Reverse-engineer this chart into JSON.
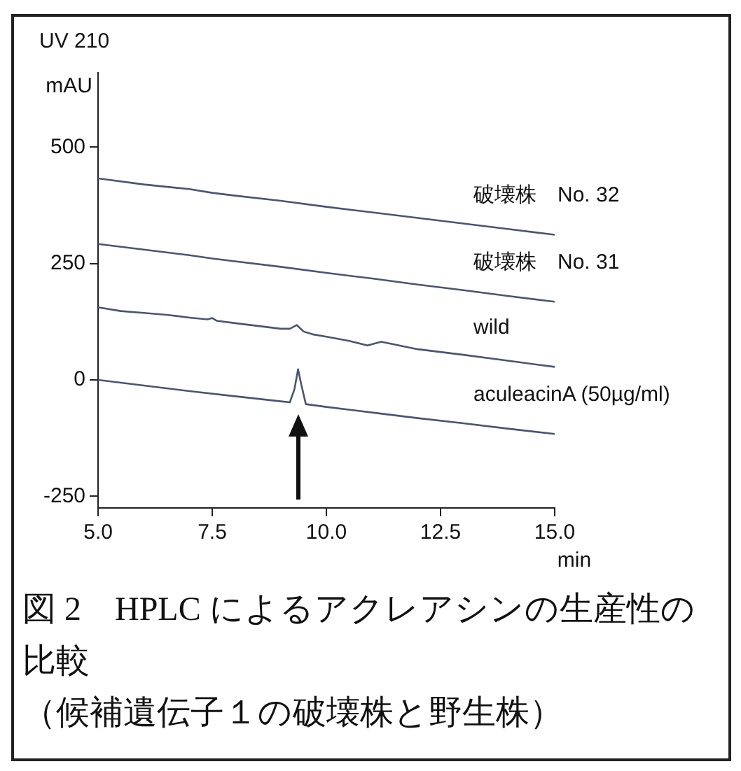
{
  "chart_data": {
    "type": "line",
    "title": "図 2　HPLC によるアクレアシンの生産性の比較",
    "subtitle": "（候補遺伝子１の破壊株と野生株）",
    "ylabel": "mAU",
    "xlabel": "min",
    "annotations": [
      "UV 210"
    ],
    "xlim": [
      5,
      15
    ],
    "xticks": [
      {
        "value": 5,
        "label": "5.0"
      },
      {
        "value": 7.5,
        "label": "7.5"
      },
      {
        "value": 10,
        "label": "10.0"
      },
      {
        "value": 12.5,
        "label": "12.5"
      },
      {
        "value": 15,
        "label": "15.0"
      }
    ],
    "ylim": [
      -275,
      660
    ],
    "yticks": [
      -250,
      0,
      250,
      500
    ],
    "grid": false,
    "legend": false,
    "marker": "none",
    "line_style": "solid",
    "series": [
      {
        "name": "破壊株　No. 32",
        "color": "#4a5573",
        "x": [
          5,
          6,
          7,
          7.5,
          8,
          9,
          10,
          11,
          12,
          13,
          14,
          15
        ],
        "values": [
          433,
          420,
          410,
          402,
          396,
          385,
          372,
          360,
          348,
          336,
          324,
          312
        ]
      },
      {
        "name": "破壊株　No. 31",
        "color": "#4a5573",
        "x": [
          5,
          6,
          7,
          7.5,
          8,
          9,
          10,
          11,
          12,
          13,
          14,
          15
        ],
        "values": [
          292,
          280,
          268,
          261,
          255,
          243,
          230,
          218,
          205,
          193,
          180,
          168
        ]
      },
      {
        "name": "wild",
        "color": "#4a5573",
        "x": [
          5,
          5.5,
          6,
          6.5,
          7,
          7.4,
          7.5,
          7.6,
          8,
          8.5,
          9,
          9.2,
          9.35,
          9.5,
          9.7,
          10,
          10.5,
          10.9,
          11.2,
          11.5,
          12,
          13,
          14,
          15
        ],
        "values": [
          156,
          148,
          144,
          140,
          134,
          130,
          133,
          127,
          122,
          116,
          110,
          110,
          118,
          104,
          98,
          93,
          84,
          74,
          82,
          76,
          66,
          54,
          41,
          28
        ]
      },
      {
        "name": "aculeacinA (50µg/ml)",
        "color": "#4a5573",
        "x": [
          5,
          6,
          7,
          8,
          9,
          9.2,
          9.3,
          9.38,
          9.45,
          9.55,
          10,
          11,
          12,
          13,
          14,
          15
        ],
        "values": [
          0,
          -12,
          -24,
          -35,
          -46,
          -48,
          -20,
          23,
          -10,
          -52,
          -58,
          -70,
          -82,
          -93,
          -105,
          -116
        ]
      }
    ]
  }
}
